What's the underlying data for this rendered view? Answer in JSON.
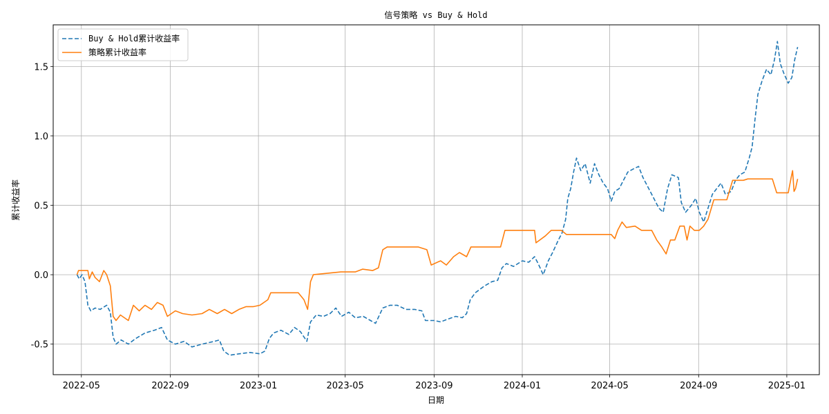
{
  "chart_data": {
    "type": "line",
    "title": "信号策略 vs Buy & Hold",
    "xlabel": "日期",
    "ylabel": "累计收益率",
    "x_ticks": [
      "2022-05",
      "2022-09",
      "2023-01",
      "2023-05",
      "2023-09",
      "2024-01",
      "2024-05",
      "2024-09",
      "2025-01"
    ],
    "y_ticks": [
      "-0.5",
      "0.0",
      "0.5",
      "1.0",
      "1.5"
    ],
    "xlim": [
      "2022-03-23",
      "2025-02-15"
    ],
    "ylim": [
      -0.72,
      1.8
    ],
    "grid": true,
    "legend_position": "top-left",
    "series": [
      {
        "name": "Buy & Hold累计收益率",
        "color": "#1f77b4",
        "style": "dashed",
        "points": [
          [
            "2022-04-25",
            0.0
          ],
          [
            "2022-04-28",
            -0.03
          ],
          [
            "2022-05-02",
            0.0
          ],
          [
            "2022-05-06",
            -0.05
          ],
          [
            "2022-05-10",
            -0.22
          ],
          [
            "2022-05-14",
            -0.26
          ],
          [
            "2022-05-20",
            -0.24
          ],
          [
            "2022-05-27",
            -0.25
          ],
          [
            "2022-06-05",
            -0.22
          ],
          [
            "2022-06-10",
            -0.27
          ],
          [
            "2022-06-14",
            -0.45
          ],
          [
            "2022-06-18",
            -0.5
          ],
          [
            "2022-06-25",
            -0.47
          ],
          [
            "2022-07-05",
            -0.5
          ],
          [
            "2022-07-15",
            -0.46
          ],
          [
            "2022-07-28",
            -0.42
          ],
          [
            "2022-08-10",
            -0.4
          ],
          [
            "2022-08-20",
            -0.38
          ],
          [
            "2022-08-28",
            -0.47
          ],
          [
            "2022-09-08",
            -0.5
          ],
          [
            "2022-09-20",
            -0.48
          ],
          [
            "2022-10-01",
            -0.52
          ],
          [
            "2022-10-15",
            -0.5
          ],
          [
            "2022-11-01",
            -0.48
          ],
          [
            "2022-11-08",
            -0.47
          ],
          [
            "2022-11-14",
            -0.55
          ],
          [
            "2022-11-22",
            -0.58
          ],
          [
            "2022-12-05",
            -0.57
          ],
          [
            "2022-12-20",
            -0.56
          ],
          [
            "2023-01-03",
            -0.57
          ],
          [
            "2023-01-10",
            -0.55
          ],
          [
            "2023-01-16",
            -0.46
          ],
          [
            "2023-01-22",
            -0.42
          ],
          [
            "2023-02-01",
            -0.4
          ],
          [
            "2023-02-12",
            -0.43
          ],
          [
            "2023-02-20",
            -0.38
          ],
          [
            "2023-02-28",
            -0.41
          ],
          [
            "2023-03-09",
            -0.48
          ],
          [
            "2023-03-14",
            -0.34
          ],
          [
            "2023-03-22",
            -0.29
          ],
          [
            "2023-04-01",
            -0.3
          ],
          [
            "2023-04-10",
            -0.28
          ],
          [
            "2023-04-18",
            -0.24
          ],
          [
            "2023-04-26",
            -0.3
          ],
          [
            "2023-05-06",
            -0.27
          ],
          [
            "2023-05-15",
            -0.31
          ],
          [
            "2023-05-26",
            -0.3
          ],
          [
            "2023-06-05",
            -0.33
          ],
          [
            "2023-06-12",
            -0.35
          ],
          [
            "2023-06-22",
            -0.24
          ],
          [
            "2023-07-02",
            -0.22
          ],
          [
            "2023-07-12",
            -0.22
          ],
          [
            "2023-07-24",
            -0.25
          ],
          [
            "2023-08-05",
            -0.25
          ],
          [
            "2023-08-15",
            -0.26
          ],
          [
            "2023-08-20",
            -0.33
          ],
          [
            "2023-09-01",
            -0.33
          ],
          [
            "2023-09-10",
            -0.34
          ],
          [
            "2023-09-20",
            -0.32
          ],
          [
            "2023-10-01",
            -0.3
          ],
          [
            "2023-10-10",
            -0.31
          ],
          [
            "2023-10-16",
            -0.28
          ],
          [
            "2023-10-21",
            -0.18
          ],
          [
            "2023-10-28",
            -0.13
          ],
          [
            "2023-11-10",
            -0.08
          ],
          [
            "2023-11-20",
            -0.05
          ],
          [
            "2023-11-28",
            -0.04
          ],
          [
            "2023-12-04",
            0.05
          ],
          [
            "2023-12-10",
            0.08
          ],
          [
            "2023-12-20",
            0.06
          ],
          [
            "2024-01-01",
            0.1
          ],
          [
            "2024-01-10",
            0.09
          ],
          [
            "2024-01-18",
            0.13
          ],
          [
            "2024-01-23",
            0.08
          ],
          [
            "2024-01-30",
            0.0
          ],
          [
            "2024-02-06",
            0.1
          ],
          [
            "2024-02-12",
            0.16
          ],
          [
            "2024-02-20",
            0.25
          ],
          [
            "2024-02-25",
            0.3
          ],
          [
            "2024-03-01",
            0.4
          ],
          [
            "2024-03-04",
            0.55
          ],
          [
            "2024-03-08",
            0.62
          ],
          [
            "2024-03-12",
            0.74
          ],
          [
            "2024-03-16",
            0.84
          ],
          [
            "2024-03-22",
            0.75
          ],
          [
            "2024-03-28",
            0.8
          ],
          [
            "2024-04-04",
            0.66
          ],
          [
            "2024-04-10",
            0.8
          ],
          [
            "2024-04-16",
            0.72
          ],
          [
            "2024-04-22",
            0.66
          ],
          [
            "2024-04-28",
            0.62
          ],
          [
            "2024-05-03",
            0.53
          ],
          [
            "2024-05-08",
            0.6
          ],
          [
            "2024-05-14",
            0.62
          ],
          [
            "2024-05-20",
            0.68
          ],
          [
            "2024-05-26",
            0.74
          ],
          [
            "2024-06-02",
            0.76
          ],
          [
            "2024-06-10",
            0.78
          ],
          [
            "2024-06-16",
            0.7
          ],
          [
            "2024-06-24",
            0.62
          ],
          [
            "2024-06-30",
            0.56
          ],
          [
            "2024-07-08",
            0.48
          ],
          [
            "2024-07-14",
            0.45
          ],
          [
            "2024-07-20",
            0.62
          ],
          [
            "2024-07-26",
            0.72
          ],
          [
            "2024-08-04",
            0.7
          ],
          [
            "2024-08-08",
            0.52
          ],
          [
            "2024-08-14",
            0.45
          ],
          [
            "2024-08-22",
            0.5
          ],
          [
            "2024-08-28",
            0.55
          ],
          [
            "2024-09-02",
            0.45
          ],
          [
            "2024-09-08",
            0.38
          ],
          [
            "2024-09-14",
            0.48
          ],
          [
            "2024-09-20",
            0.58
          ],
          [
            "2024-09-26",
            0.62
          ],
          [
            "2024-10-02",
            0.66
          ],
          [
            "2024-10-08",
            0.58
          ],
          [
            "2024-10-16",
            0.6
          ],
          [
            "2024-10-22",
            0.68
          ],
          [
            "2024-10-28",
            0.72
          ],
          [
            "2024-11-04",
            0.74
          ],
          [
            "2024-11-10",
            0.84
          ],
          [
            "2024-11-14",
            0.92
          ],
          [
            "2024-11-18",
            1.12
          ],
          [
            "2024-11-22",
            1.3
          ],
          [
            "2024-11-28",
            1.4
          ],
          [
            "2024-12-04",
            1.48
          ],
          [
            "2024-12-10",
            1.44
          ],
          [
            "2024-12-15",
            1.55
          ],
          [
            "2024-12-19",
            1.68
          ],
          [
            "2024-12-23",
            1.52
          ],
          [
            "2024-12-28",
            1.45
          ],
          [
            "2025-01-03",
            1.38
          ],
          [
            "2025-01-08",
            1.42
          ],
          [
            "2025-01-12",
            1.55
          ],
          [
            "2025-01-16",
            1.64
          ]
        ]
      },
      {
        "name": "策略累计收益率",
        "color": "#ff7f0e",
        "style": "solid",
        "points": [
          [
            "2022-04-25",
            0.0
          ],
          [
            "2022-04-27",
            0.03
          ],
          [
            "2022-05-10",
            0.03
          ],
          [
            "2022-05-12",
            -0.03
          ],
          [
            "2022-05-16",
            0.02
          ],
          [
            "2022-05-20",
            -0.02
          ],
          [
            "2022-05-26",
            -0.05
          ],
          [
            "2022-06-01",
            0.03
          ],
          [
            "2022-06-05",
            0.0
          ],
          [
            "2022-06-10",
            -0.08
          ],
          [
            "2022-06-14",
            -0.3
          ],
          [
            "2022-06-18",
            -0.33
          ],
          [
            "2022-06-24",
            -0.29
          ],
          [
            "2022-07-05",
            -0.33
          ],
          [
            "2022-07-12",
            -0.22
          ],
          [
            "2022-07-20",
            -0.26
          ],
          [
            "2022-07-28",
            -0.22
          ],
          [
            "2022-08-06",
            -0.25
          ],
          [
            "2022-08-14",
            -0.2
          ],
          [
            "2022-08-22",
            -0.22
          ],
          [
            "2022-08-28",
            -0.3
          ],
          [
            "2022-09-08",
            -0.26
          ],
          [
            "2022-09-18",
            -0.28
          ],
          [
            "2022-10-01",
            -0.29
          ],
          [
            "2022-10-15",
            -0.28
          ],
          [
            "2022-10-25",
            -0.25
          ],
          [
            "2022-11-05",
            -0.28
          ],
          [
            "2022-11-15",
            -0.25
          ],
          [
            "2022-11-25",
            -0.28
          ],
          [
            "2022-12-05",
            -0.25
          ],
          [
            "2022-12-15",
            -0.23
          ],
          [
            "2022-12-25",
            -0.23
          ],
          [
            "2023-01-03",
            -0.22
          ],
          [
            "2023-01-14",
            -0.18
          ],
          [
            "2023-01-18",
            -0.13
          ],
          [
            "2023-02-25",
            -0.13
          ],
          [
            "2023-03-05",
            -0.18
          ],
          [
            "2023-03-10",
            -0.25
          ],
          [
            "2023-03-14",
            -0.05
          ],
          [
            "2023-03-18",
            0.0
          ],
          [
            "2023-04-25",
            0.02
          ],
          [
            "2023-05-15",
            0.02
          ],
          [
            "2023-05-25",
            0.04
          ],
          [
            "2023-06-08",
            0.03
          ],
          [
            "2023-06-16",
            0.05
          ],
          [
            "2023-06-22",
            0.18
          ],
          [
            "2023-06-28",
            0.2
          ],
          [
            "2023-08-10",
            0.2
          ],
          [
            "2023-08-22",
            0.18
          ],
          [
            "2023-08-28",
            0.07
          ],
          [
            "2023-09-10",
            0.1
          ],
          [
            "2023-09-18",
            0.07
          ],
          [
            "2023-09-28",
            0.13
          ],
          [
            "2023-10-06",
            0.16
          ],
          [
            "2023-10-16",
            0.13
          ],
          [
            "2023-10-22",
            0.2
          ],
          [
            "2023-11-15",
            0.2
          ],
          [
            "2023-11-25",
            0.2
          ],
          [
            "2023-12-02",
            0.2
          ],
          [
            "2023-12-08",
            0.32
          ],
          [
            "2024-01-18",
            0.32
          ],
          [
            "2024-01-20",
            0.23
          ],
          [
            "2024-02-02",
            0.28
          ],
          [
            "2024-02-10",
            0.32
          ],
          [
            "2024-02-24",
            0.32
          ],
          [
            "2024-03-02",
            0.29
          ],
          [
            "2024-04-20",
            0.29
          ],
          [
            "2024-05-03",
            0.29
          ],
          [
            "2024-05-08",
            0.26
          ],
          [
            "2024-05-12",
            0.32
          ],
          [
            "2024-05-18",
            0.38
          ],
          [
            "2024-05-24",
            0.34
          ],
          [
            "2024-06-05",
            0.35
          ],
          [
            "2024-06-14",
            0.32
          ],
          [
            "2024-06-28",
            0.32
          ],
          [
            "2024-07-05",
            0.25
          ],
          [
            "2024-07-12",
            0.2
          ],
          [
            "2024-07-18",
            0.15
          ],
          [
            "2024-07-24",
            0.25
          ],
          [
            "2024-07-30",
            0.25
          ],
          [
            "2024-08-06",
            0.35
          ],
          [
            "2024-08-12",
            0.35
          ],
          [
            "2024-08-16",
            0.25
          ],
          [
            "2024-08-20",
            0.35
          ],
          [
            "2024-08-26",
            0.32
          ],
          [
            "2024-09-02",
            0.32
          ],
          [
            "2024-09-08",
            0.35
          ],
          [
            "2024-09-14",
            0.4
          ],
          [
            "2024-09-22",
            0.54
          ],
          [
            "2024-10-10",
            0.54
          ],
          [
            "2024-10-18",
            0.68
          ],
          [
            "2024-11-02",
            0.68
          ],
          [
            "2024-11-08",
            0.69
          ],
          [
            "2024-12-01",
            0.69
          ],
          [
            "2024-12-12",
            0.69
          ],
          [
            "2024-12-18",
            0.59
          ],
          [
            "2025-01-03",
            0.59
          ],
          [
            "2025-01-07",
            0.7
          ],
          [
            "2025-01-09",
            0.75
          ],
          [
            "2025-01-11",
            0.6
          ],
          [
            "2025-01-13",
            0.62
          ],
          [
            "2025-01-16",
            0.69
          ]
        ]
      }
    ]
  }
}
